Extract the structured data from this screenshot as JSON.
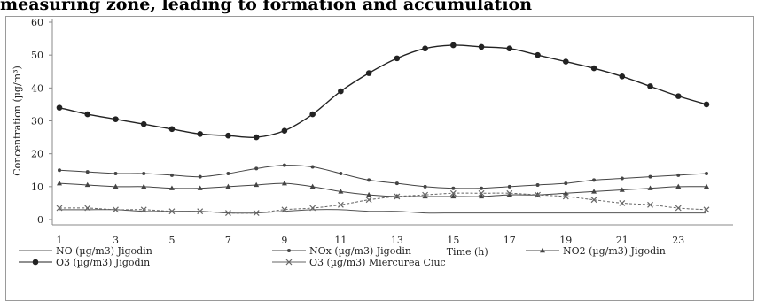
{
  "header_text": "measuring zone, leading to formation and accumulation",
  "chart_data": {
    "type": "line",
    "title": "",
    "xlabel": "Time (h)",
    "ylabel": "Concentration (µg/m³)",
    "ylim": [
      0,
      60
    ],
    "xlim": [
      1,
      24
    ],
    "yticks": [
      "0",
      "10",
      "20",
      "30",
      "40",
      "50",
      "60"
    ],
    "xticks": [
      "1",
      "3",
      "5",
      "7",
      "9",
      "11",
      "13",
      "15",
      "17",
      "19",
      "21",
      "23"
    ],
    "grid": false,
    "legend_position": "bottom",
    "x": [
      1,
      2,
      3,
      4,
      5,
      6,
      7,
      8,
      9,
      10,
      11,
      12,
      13,
      14,
      15,
      16,
      17,
      18,
      19,
      20,
      21,
      22,
      23,
      24
    ],
    "series": [
      {
        "name": "NO (µg/m3) Jigodin",
        "marker": "none",
        "color": "#555555",
        "values": [
          3,
          3,
          3,
          2.5,
          2.5,
          2.5,
          2,
          2,
          2.5,
          3,
          3,
          2.5,
          2.5,
          2,
          2,
          2,
          2,
          2,
          2,
          2,
          2,
          2,
          2,
          2
        ]
      },
      {
        "name": "NOx (µg/m3) Jigodin",
        "marker": "dot-small",
        "color": "#444444",
        "values": [
          15,
          14.5,
          14,
          14,
          13.5,
          13,
          14,
          15.5,
          16.5,
          16,
          14,
          12,
          11,
          10,
          9.5,
          9.5,
          10,
          10.5,
          11,
          12,
          12.5,
          13,
          13.5,
          14
        ]
      },
      {
        "name": "NO2 (µg/m3) Jigodin",
        "marker": "triangle",
        "color": "#444444",
        "values": [
          11,
          10.5,
          10,
          10,
          9.5,
          9.5,
          10,
          10.5,
          11,
          10,
          8.5,
          7.5,
          7,
          7,
          7,
          7,
          7.5,
          7.5,
          8,
          8.5,
          9,
          9.5,
          10,
          10
        ]
      },
      {
        "name": "O3 (µg/m3) Jigodin",
        "marker": "dot",
        "color": "#222222",
        "values": [
          34,
          32,
          30.5,
          29,
          27.5,
          26,
          25.5,
          25,
          27,
          32,
          39,
          44.5,
          49,
          52,
          53,
          52.5,
          52,
          50,
          48,
          46,
          43.5,
          40.5,
          37.5,
          35
        ]
      },
      {
        "name": "O3 (µg/m3) Miercurea Ciuc",
        "marker": "cross",
        "color": "#666666",
        "values": [
          3.5,
          3.5,
          3,
          3,
          2.5,
          2.5,
          2,
          2,
          3,
          3.5,
          4.5,
          6,
          7,
          7.5,
          8,
          8,
          8,
          7.5,
          7,
          6,
          5,
          4.5,
          3.5,
          3
        ]
      }
    ]
  }
}
